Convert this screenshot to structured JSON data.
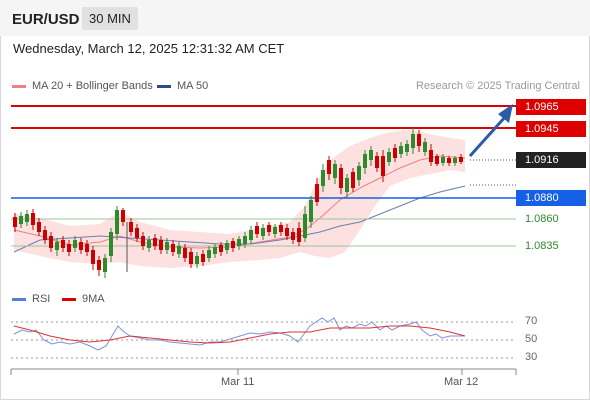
{
  "header": {
    "symbol": "EUR/USD",
    "timeframe": "30 MIN"
  },
  "datetime": "Wednesday, March 12, 2025 12:31:32 AM CET",
  "legend": {
    "ma20": "MA 20 + Bollinger Bands",
    "ma50": "MA 50",
    "ma20_color": "#f08080",
    "ma50_color": "#2e4a8a"
  },
  "research_credit": "Research © 2025 Trading Central",
  "price_levels": {
    "r2": "1.0965",
    "r1": "1.0945",
    "current": "1.0916",
    "pivot": "1.0880",
    "s1": "1.0860",
    "s2": "1.0835"
  },
  "colors": {
    "resistance": "#dd0000",
    "pivot": "#1560e6",
    "support": "#2d8a2d",
    "bull_candle": "#2d8a2d",
    "bear_candle": "#cc0000",
    "arrow": "#2a5ca8"
  },
  "rsi_legend": {
    "rsi": "RSI",
    "ma9": "9MA",
    "rsi_color": "#5a7bd8",
    "ma9_color": "#dd0000"
  },
  "rsi_ticks": [
    "70",
    "50",
    "30"
  ],
  "x_labels": [
    "Mar 11",
    "Mar 12"
  ]
}
